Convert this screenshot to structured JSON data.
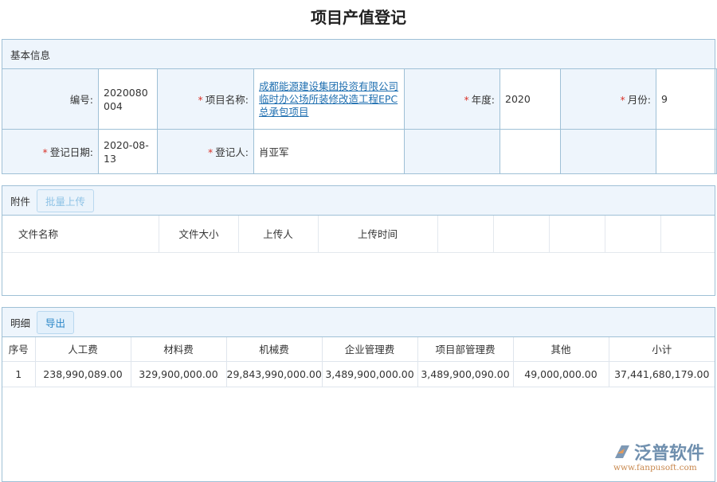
{
  "title": "项目产值登记",
  "basic": {
    "header": "基本信息",
    "code_label": "编号:",
    "code_value": "2020080004",
    "project_label": "项目名称:",
    "project_value": "成都能源建设集团投资有限公司临时办公场所装修改造工程EPC总承包项目",
    "year_label": "年度:",
    "year_value": "2020",
    "month_label": "月份:",
    "month_value": "9",
    "date_label": "登记日期:",
    "date_value": "2020-08-13",
    "person_label": "登记人:",
    "person_value": "肖亚军"
  },
  "attachments": {
    "header": "附件",
    "upload_button": "批量上传",
    "columns": [
      "文件名称",
      "文件大小",
      "上传人",
      "上传时间"
    ]
  },
  "detail": {
    "header": "明细",
    "export_button": "导出",
    "columns": [
      "序号",
      "人工费",
      "材料费",
      "机械费",
      "企业管理费",
      "项目部管理费",
      "其他",
      "小计"
    ],
    "rows": [
      [
        "1",
        "238,990,089.00",
        "329,900,000.00",
        "29,843,990,000.00",
        "3,489,900,000.00",
        "3,489,900,090.00",
        "49,000,000.00",
        "37,441,680,179.00"
      ]
    ]
  },
  "watermark": {
    "name": "泛普软件",
    "url": "www.fanpusoft.com"
  }
}
